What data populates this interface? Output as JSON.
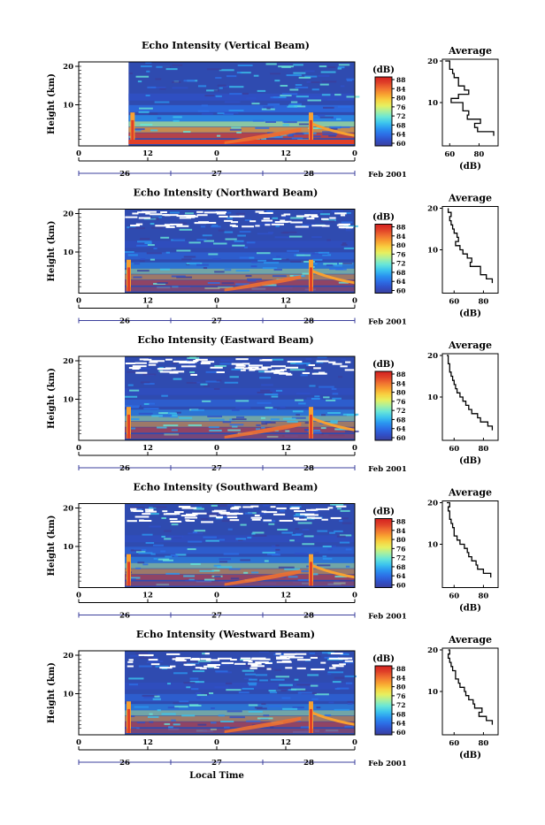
{
  "colorbar": {
    "unit": "(dB)",
    "ticks": [
      "88",
      "84",
      "80",
      "76",
      "72",
      "68",
      "64",
      "60"
    ],
    "colors": [
      "#3b3f9c",
      "#3050c8",
      "#2c6ee6",
      "#2a95f0",
      "#3cc4ee",
      "#68e6d8",
      "#a8f0a0",
      "#e6f060",
      "#f8d040",
      "#f8a030",
      "#f07030",
      "#e04028",
      "#d42020"
    ]
  },
  "time_axis": {
    "hour_ticks": [
      "0",
      "12",
      "0",
      "12",
      "0"
    ],
    "day_labels": [
      "26",
      "27",
      "28"
    ],
    "month_label": "Feb 2001",
    "xlabel": "Local Time"
  },
  "height_axis": {
    "label": "Height (km)",
    "ticks": [
      "20",
      "10"
    ]
  },
  "average_panel": {
    "title": "Average",
    "xlabel": "(dB)"
  },
  "chart_data": [
    {
      "type": "heatmap",
      "title": "Echo Intensity (Vertical Beam)",
      "ylabel": "Height (km)",
      "ylim": [
        0,
        20
      ],
      "xlim_hours": [
        0,
        72
      ],
      "data_start_hour": 13,
      "average_profile": {
        "title": "Average",
        "xlabel": "(dB)",
        "xticks": [
          "60",
          "80"
        ],
        "xlim": [
          55,
          93
        ],
        "height": [
          2,
          3,
          4,
          5,
          6,
          7,
          8,
          9,
          10,
          11,
          12,
          13,
          14,
          15,
          16,
          17,
          18,
          19,
          20
        ],
        "value": [
          90,
          79,
          77,
          81,
          72,
          73,
          69,
          69,
          61,
          66,
          73,
          70,
          66,
          66,
          63,
          62,
          60,
          60,
          57
        ]
      }
    },
    {
      "type": "heatmap",
      "title": "Echo Intensity (Northward Beam)",
      "ylabel": "Height (km)",
      "ylim": [
        0,
        20
      ],
      "xlim_hours": [
        0,
        72
      ],
      "data_start_hour": 12,
      "average_profile": {
        "title": "Average",
        "xlabel": "(dB)",
        "xticks": [
          "60",
          "80"
        ],
        "xlim": [
          52,
          90
        ],
        "height": [
          2,
          3,
          4,
          5,
          6,
          7,
          8,
          9,
          10,
          11,
          12,
          13,
          14,
          15,
          16,
          17,
          18,
          19,
          20
        ],
        "value": [
          86,
          82,
          78,
          78,
          71,
          72,
          69,
          66,
          64,
          61,
          63,
          62,
          60,
          59,
          58,
          57,
          58,
          56,
          56
        ]
      }
    },
    {
      "type": "heatmap",
      "title": "Echo Intensity (Eastward Beam)",
      "ylabel": "Height (km)",
      "ylim": [
        0,
        20
      ],
      "xlim_hours": [
        0,
        72
      ],
      "data_start_hour": 12,
      "average_profile": {
        "title": "Average",
        "xlabel": "(dB)",
        "xticks": [
          "60",
          "80"
        ],
        "xlim": [
          52,
          90
        ],
        "height": [
          2,
          3,
          4,
          5,
          6,
          7,
          8,
          9,
          10,
          11,
          12,
          13,
          14,
          15,
          16,
          17,
          18,
          19,
          20
        ],
        "value": [
          86,
          83,
          78,
          76,
          72,
          70,
          68,
          66,
          64,
          62,
          61,
          60,
          59,
          58,
          57,
          57,
          56,
          56,
          55
        ]
      }
    },
    {
      "type": "heatmap",
      "title": "Echo Intensity (Southward Beam)",
      "ylabel": "Height (km)",
      "ylim": [
        0,
        20
      ],
      "xlim_hours": [
        0,
        72
      ],
      "data_start_hour": 12,
      "average_profile": {
        "title": "Average",
        "xlabel": "(dB)",
        "xticks": [
          "60",
          "80"
        ],
        "xlim": [
          52,
          90
        ],
        "height": [
          2,
          3,
          4,
          5,
          6,
          7,
          8,
          9,
          10,
          11,
          12,
          13,
          14,
          15,
          16,
          17,
          18,
          19,
          20
        ],
        "value": [
          85,
          80,
          76,
          75,
          72,
          70,
          69,
          67,
          64,
          62,
          60,
          60,
          59,
          58,
          57,
          57,
          56,
          57,
          55
        ]
      }
    },
    {
      "type": "heatmap",
      "title": "Echo Intensity (Westward Beam)",
      "ylabel": "Height (km)",
      "ylim": [
        0,
        20
      ],
      "xlim_hours": [
        0,
        72
      ],
      "data_start_hour": 12,
      "average_profile": {
        "title": "Average",
        "xlabel": "(dB)",
        "xticks": [
          "60",
          "80"
        ],
        "xlim": [
          52,
          90
        ],
        "height": [
          2,
          3,
          4,
          5,
          6,
          7,
          8,
          9,
          10,
          11,
          12,
          13,
          14,
          15,
          16,
          17,
          18,
          19,
          20
        ],
        "value": [
          86,
          82,
          77,
          79,
          74,
          73,
          70,
          68,
          67,
          64,
          63,
          61,
          61,
          59,
          58,
          57,
          56,
          57,
          56
        ]
      }
    }
  ]
}
